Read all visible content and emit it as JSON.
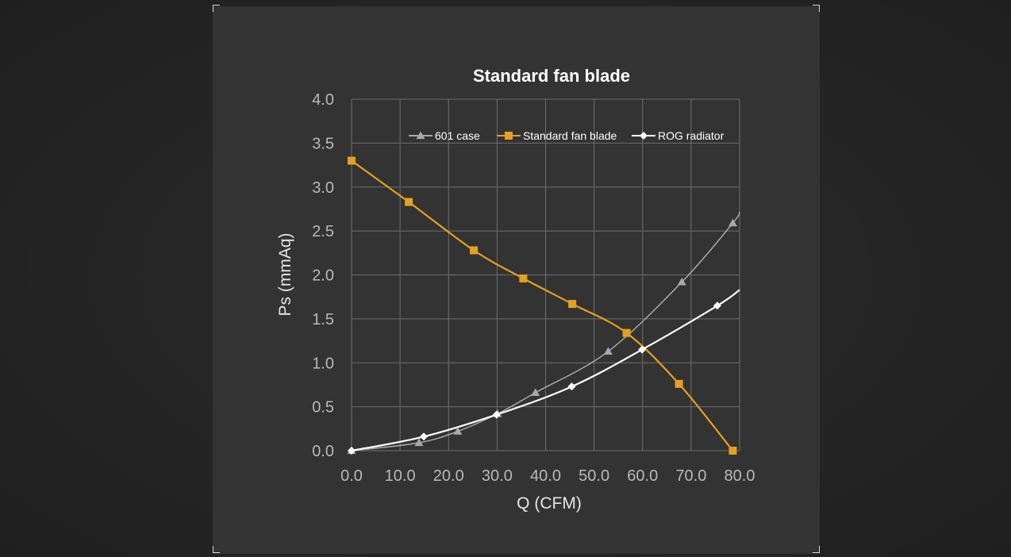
{
  "chart_data": {
    "type": "line",
    "title": "Standard fan blade",
    "xlabel": "Q (CFM)",
    "ylabel": "Ps (mmAq)",
    "xlim": [
      0,
      80
    ],
    "ylim": [
      0,
      4
    ],
    "xticks": [
      "0.0",
      "10.0",
      "20.0",
      "30.0",
      "40.0",
      "50.0",
      "60.0",
      "70.0",
      "80.0"
    ],
    "yticks": [
      "0.0",
      "0.5",
      "1.0",
      "1.5",
      "2.0",
      "2.5",
      "3.0",
      "3.5",
      "4.0"
    ],
    "grid": true,
    "legend_position": "top-right",
    "series": [
      {
        "name": "601 case",
        "color": "#a8a8a8",
        "marker": "triangle",
        "x": [
          0,
          13.9,
          21.9,
          30.1,
          37.9,
          52.9,
          68.1,
          78.6
        ],
        "y": [
          0,
          0.09,
          0.22,
          0.42,
          0.66,
          1.13,
          1.92,
          2.59
        ],
        "extend_to": [
          80,
          2.72
        ]
      },
      {
        "name": "Standard fan blade",
        "color": "#e3a021",
        "marker": "square",
        "x": [
          0,
          11.8,
          25.2,
          35.4,
          45.5,
          56.7,
          67.5,
          78.6
        ],
        "y": [
          3.3,
          2.83,
          2.28,
          1.96,
          1.67,
          1.34,
          0.76,
          0
        ]
      },
      {
        "name": "ROG radiator",
        "color": "#ffffff",
        "marker": "diamond",
        "x": [
          0,
          14.9,
          29.9,
          45.4,
          59.9,
          75.4
        ],
        "y": [
          0,
          0.16,
          0.41,
          0.73,
          1.15,
          1.65
        ],
        "extend_to": [
          80,
          1.83
        ]
      }
    ]
  }
}
